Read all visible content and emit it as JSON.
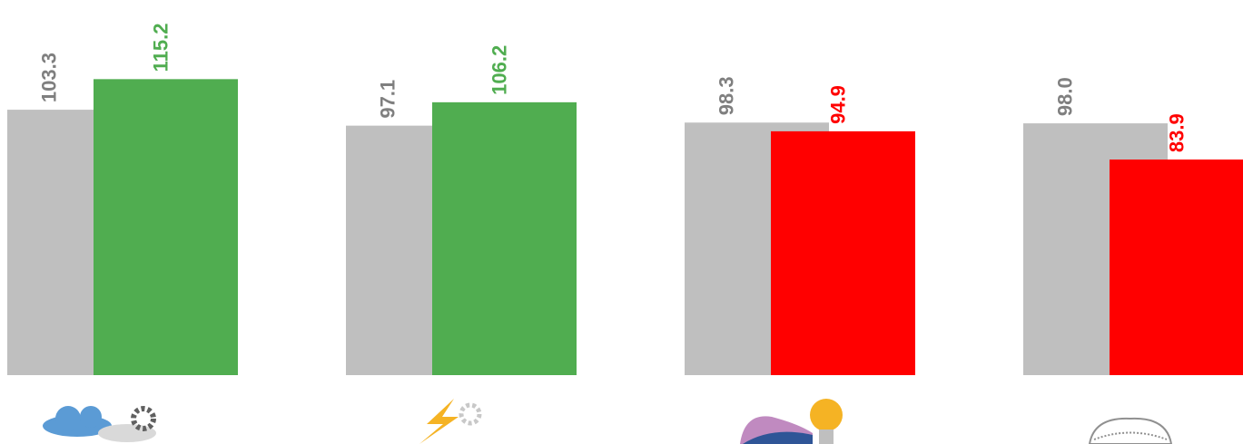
{
  "chart_data": {
    "type": "bar",
    "categories": [
      null,
      null,
      null,
      null
    ],
    "series": [
      {
        "color": "#bfbfbf",
        "label_color": "#7f7f7f",
        "values": [
          103.3,
          97.1,
          98.3,
          98.0
        ],
        "value_labels": [
          "103.3",
          "97.1",
          "98.3",
          "98.0"
        ]
      },
      {
        "colors": [
          "#50ad50",
          "#50ad50",
          "#ff0000",
          "#ff0000"
        ],
        "values": [
          115.2,
          106.2,
          94.9,
          83.9
        ],
        "value_labels": [
          "115.2",
          "106.2",
          "94.9",
          "83.9"
        ]
      }
    ],
    "ylim": [
      0,
      146
    ]
  }
}
